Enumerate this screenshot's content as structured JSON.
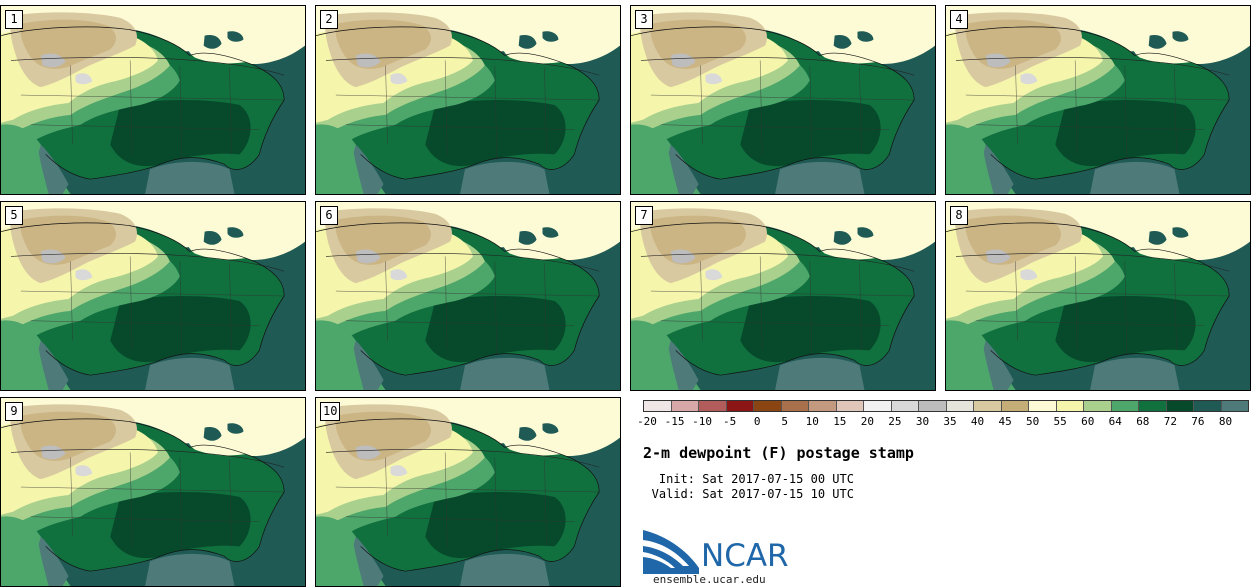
{
  "title": "2-m dewpoint (F) postage stamp",
  "init_label": "Init:",
  "init_value": "Sat 2017-07-15 00 UTC",
  "valid_label": "Valid:",
  "valid_value": "Sat 2017-07-15 10 UTC",
  "logo_text": "NCAR",
  "site": "ensemble.ucar.edu",
  "members": [
    {
      "num": "1"
    },
    {
      "num": "2"
    },
    {
      "num": "3"
    },
    {
      "num": "4"
    },
    {
      "num": "5"
    },
    {
      "num": "6"
    },
    {
      "num": "7"
    },
    {
      "num": "8"
    },
    {
      "num": "9"
    },
    {
      "num": "10"
    }
  ],
  "colorbar": {
    "ticks": [
      "-20",
      "-15",
      "-10",
      "-5",
      "0",
      "5",
      "10",
      "15",
      "20",
      "25",
      "30",
      "35",
      "40",
      "45",
      "50",
      "55",
      "60",
      "64",
      "68",
      "72",
      "76",
      "80"
    ],
    "colors": [
      "#f1e6e6",
      "#d8a8a8",
      "#b35c5c",
      "#8c1616",
      "#8b4512",
      "#a9714b",
      "#c39a80",
      "#e0c6b8",
      "#f2f2f2",
      "#d9d9d9",
      "#bdbdbd",
      "#e5e5dc",
      "#d9c9a0",
      "#c5ad78",
      "#fdfbd5",
      "#f5f6ac",
      "#a9d08d",
      "#4da66a",
      "#10703e",
      "#064a2b",
      "#1f5a55",
      "#4e7a7a"
    ]
  }
}
